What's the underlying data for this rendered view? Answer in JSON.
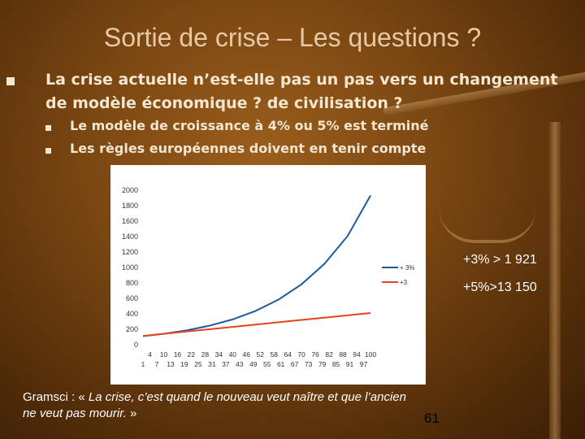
{
  "slide": {
    "title": "Sortie de crise – Les questions ?",
    "main_bullet": "La crise actuelle n’est-elle pas un pas vers un changement de modèle économique ? de civilisation ?",
    "sub_bullets": [
      "Le modèle de croissance à 4% ou 5% est terminé",
      "Les règles européennes doivent en tenir compte"
    ],
    "annotations": [
      "+3% > 1 921",
      "+5%>13 150"
    ],
    "quote_prefix": "Gramsci : « ",
    "quote_italic": "La crise, c’est quand le nouveau veut naître et que l’ancien ne veut pas mourir.",
    "quote_suffix": " »",
    "page_number": "61"
  },
  "chart_data": {
    "type": "line",
    "ylim": [
      0,
      2000
    ],
    "y_ticks": [
      0,
      200,
      400,
      600,
      800,
      1000,
      1200,
      1400,
      1600,
      1800,
      2000
    ],
    "x_tick_labels_top": [
      "4",
      "10",
      "16",
      "22",
      "28",
      "34",
      "40",
      "46",
      "52",
      "58",
      "64",
      "70",
      "76",
      "82",
      "88",
      "94",
      "100"
    ],
    "x_tick_labels_bottom": [
      "1",
      "7",
      "13",
      "19",
      "25",
      "31",
      "37",
      "43",
      "49",
      "55",
      "61",
      "67",
      "73",
      "79",
      "85",
      "91",
      "97"
    ],
    "xlim": [
      1,
      100
    ],
    "legend_position": "right",
    "series": [
      {
        "name": "+ 3%",
        "color": "#1f5a9e",
        "x": [
          1,
          10,
          20,
          30,
          40,
          50,
          60,
          70,
          80,
          90,
          100
        ],
        "values": [
          100,
          130,
          175,
          236,
          317,
          427,
          574,
          772,
          1038,
          1395,
          1921
        ]
      },
      {
        "name": "+3",
        "color": "#e8431a",
        "x": [
          1,
          10,
          20,
          30,
          40,
          50,
          60,
          70,
          80,
          90,
          100
        ],
        "values": [
          103,
          130,
          160,
          190,
          220,
          250,
          280,
          310,
          340,
          370,
          400
        ]
      }
    ],
    "colors": {
      "axis_text": "#333333"
    }
  }
}
